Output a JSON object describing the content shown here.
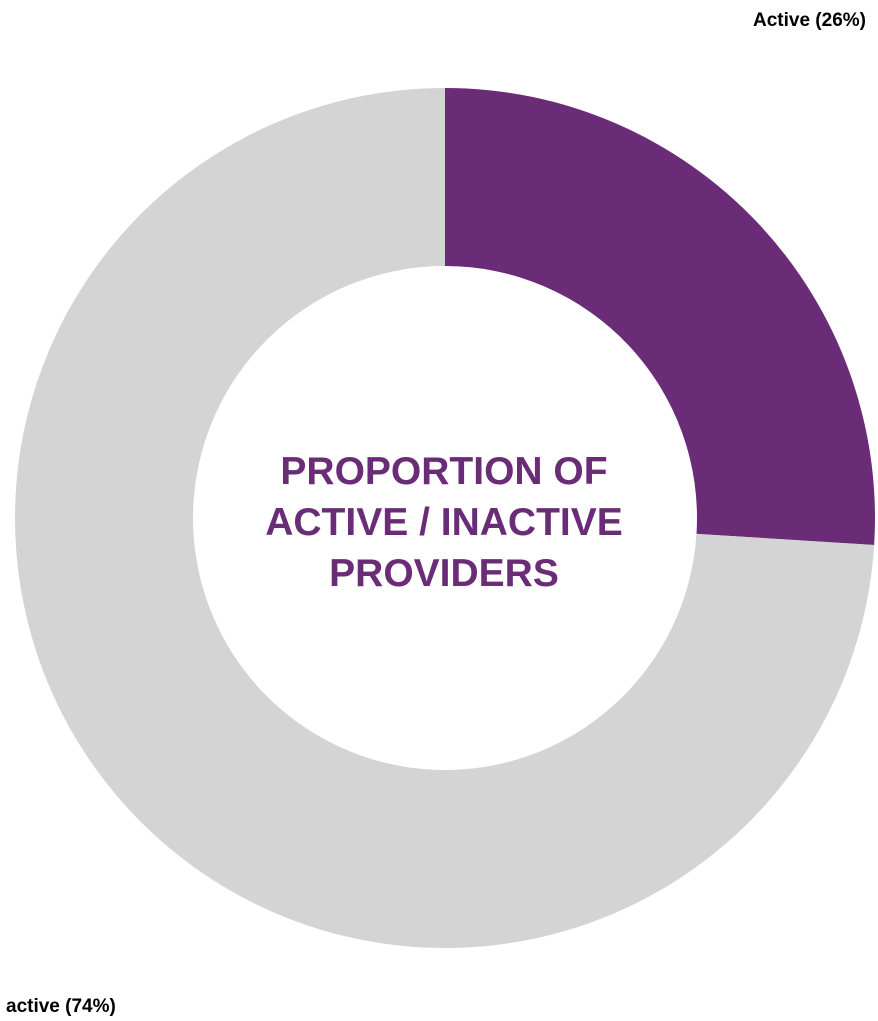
{
  "chart_data": {
    "type": "pie",
    "variant": "donut",
    "title_lines": [
      "PROPORTION OF",
      "ACTIVE / INACTIVE",
      "PROVIDERS"
    ],
    "slices": [
      {
        "label": "Active (26%)",
        "value": 26,
        "color": "#6b2c77"
      },
      {
        "label": "active (74%)",
        "value": 74,
        "color": "#d4d4d4"
      }
    ]
  }
}
